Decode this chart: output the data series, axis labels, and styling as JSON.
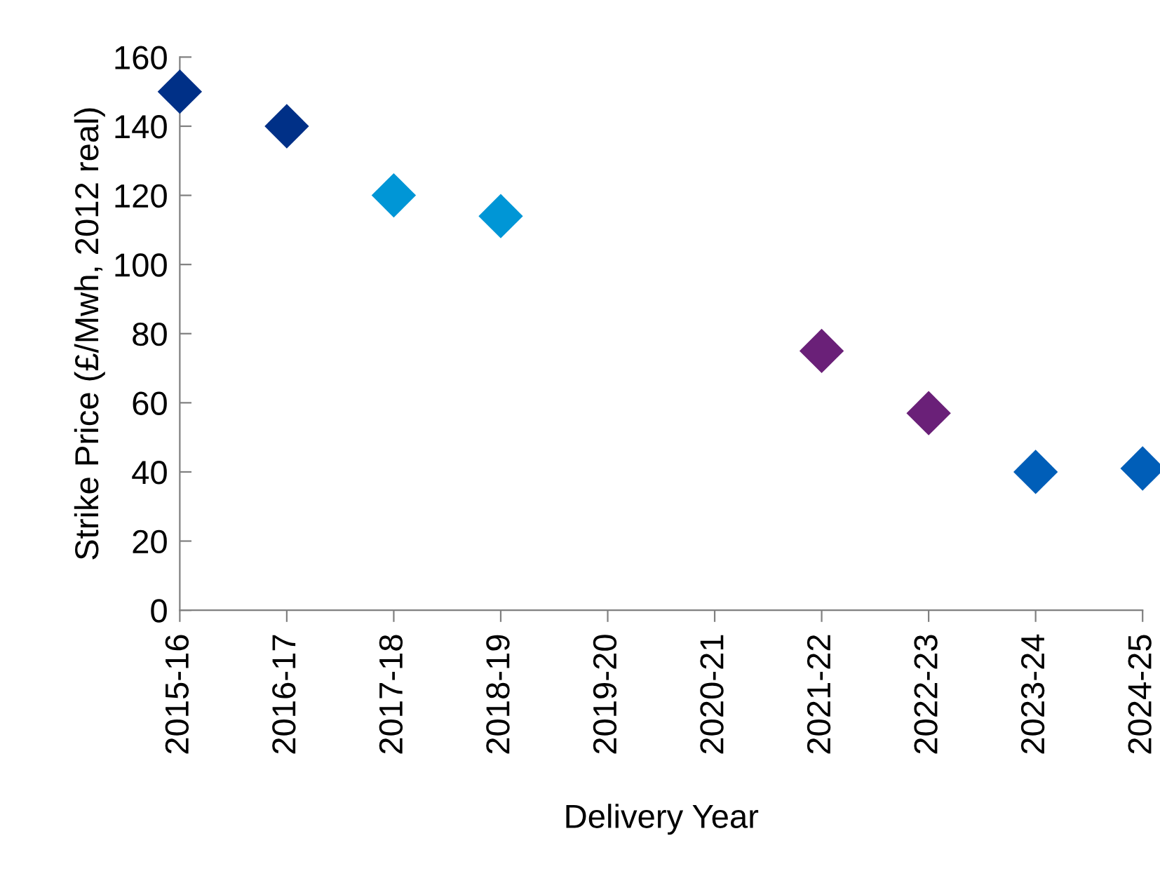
{
  "chart_data": {
    "type": "scatter",
    "xlabel": "Delivery Year",
    "ylabel": "Strike Price (£/Mwh, 2012 real)",
    "categories": [
      "2015-16",
      "2016-17",
      "2017-18",
      "2018-19",
      "2019-20",
      "2020-21",
      "2021-22",
      "2022-23",
      "2023-24",
      "2024-25"
    ],
    "values": [
      150,
      140,
      120,
      114,
      null,
      null,
      75,
      57,
      40,
      41
    ],
    "colors": [
      "#003087",
      "#003087",
      "#0096d6",
      "#0096d6",
      null,
      null,
      "#6a2078",
      "#6a2078",
      "#005eb8",
      "#005eb8"
    ],
    "ylim": [
      0,
      160
    ],
    "yticks": [
      0,
      20,
      40,
      60,
      80,
      100,
      120,
      140,
      160
    ],
    "grid": false,
    "marker": "diamond"
  }
}
